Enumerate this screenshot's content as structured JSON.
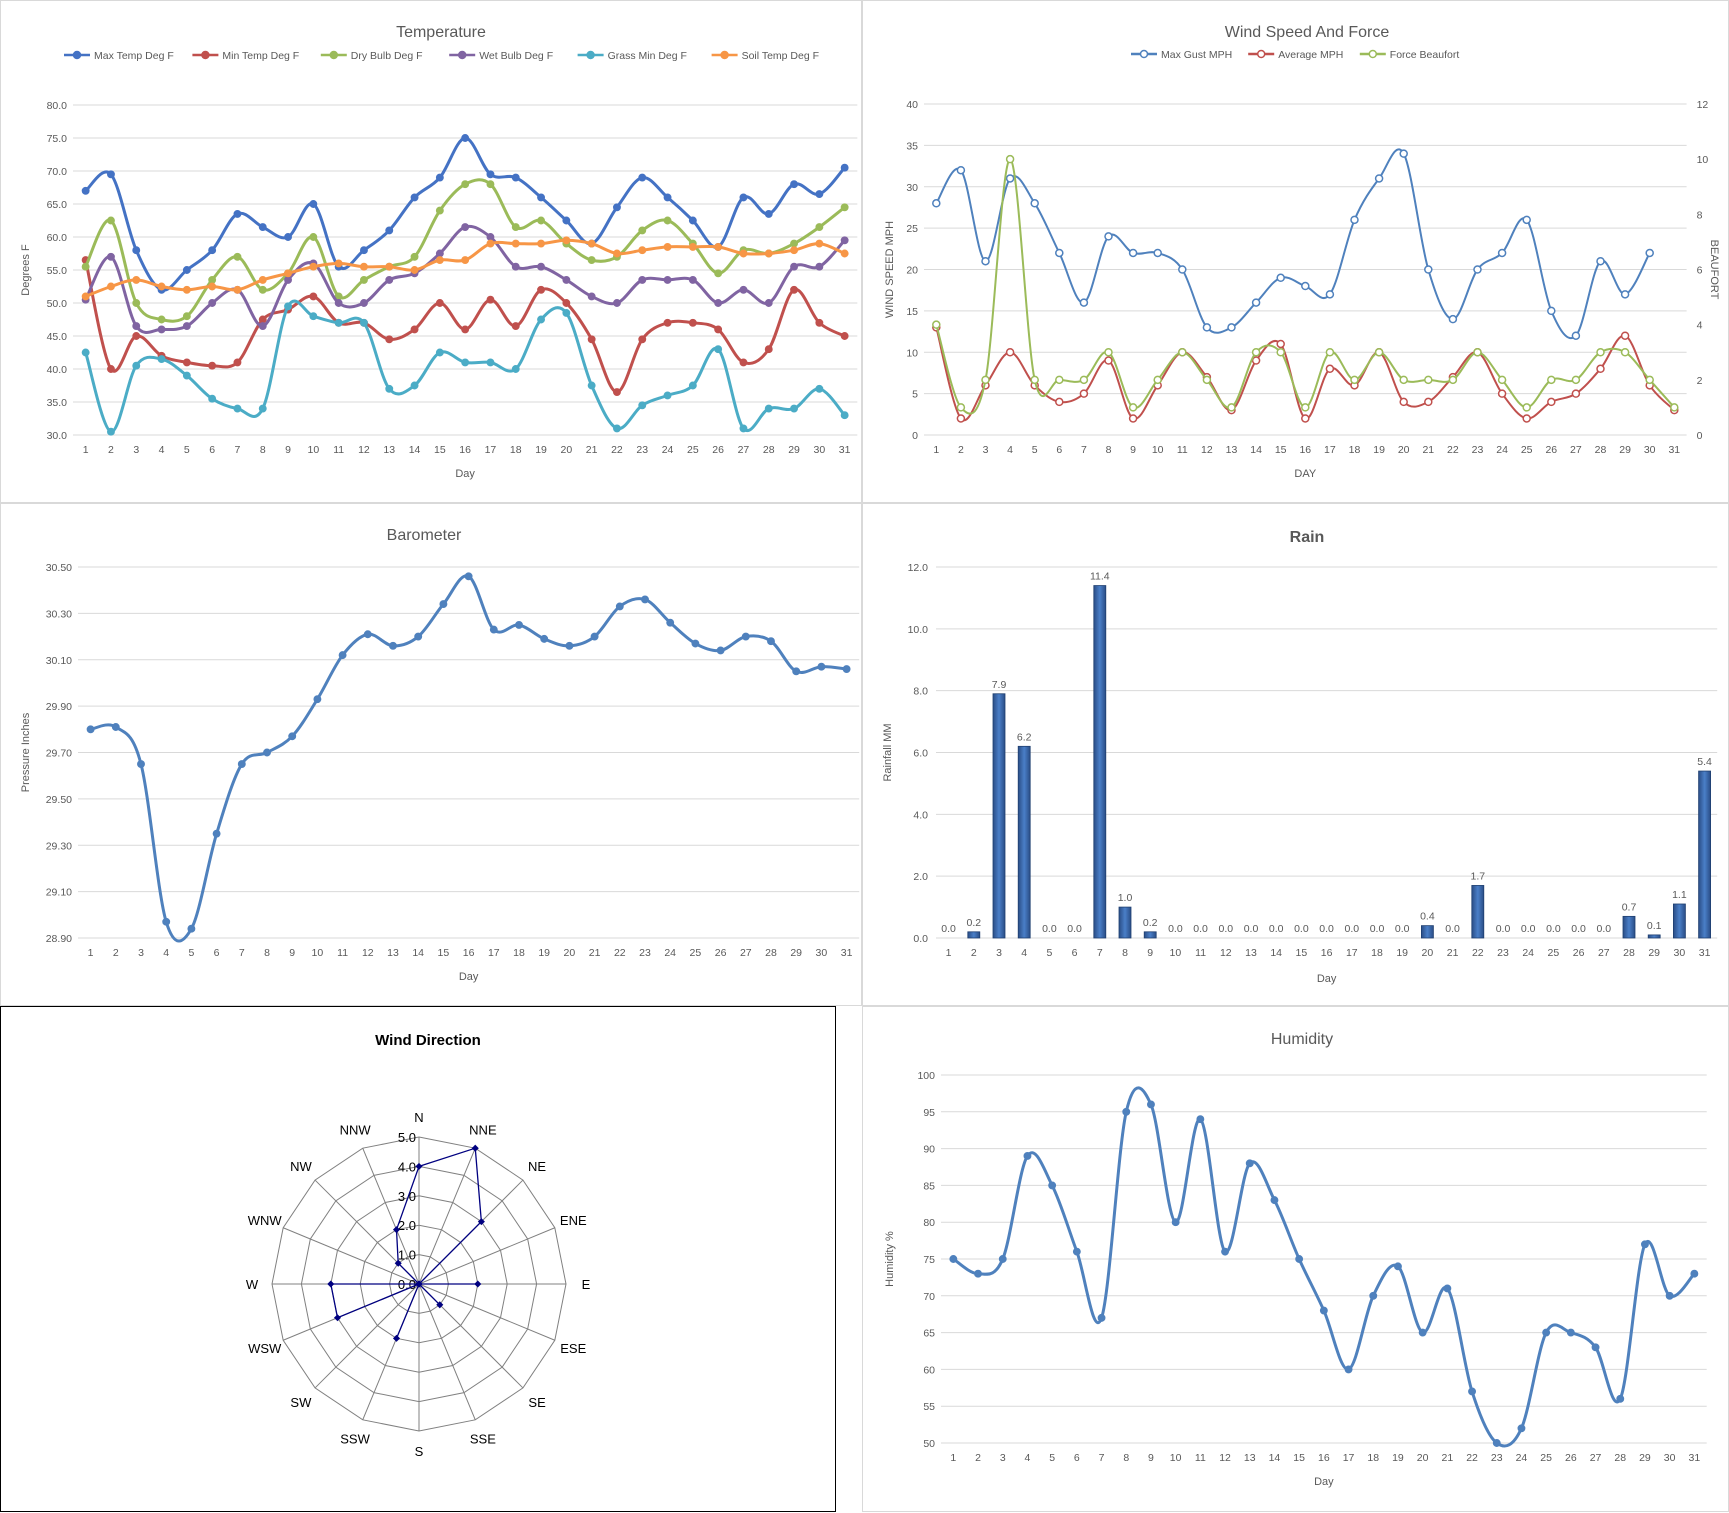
{
  "chart_data": [
    {
      "id": "temperature",
      "type": "line",
      "title": "Temperature",
      "xlabel": "Day",
      "ylabel": "Degrees F",
      "ylim": [
        30,
        80
      ],
      "yticks": [
        "30.0",
        "35.0",
        "40.0",
        "45.0",
        "50.0",
        "55.0",
        "60.0",
        "65.0",
        "70.0",
        "75.0",
        "80.0"
      ],
      "x": [
        1,
        2,
        3,
        4,
        5,
        6,
        7,
        8,
        9,
        10,
        11,
        12,
        13,
        14,
        15,
        16,
        17,
        18,
        19,
        20,
        21,
        22,
        23,
        24,
        25,
        26,
        27,
        28,
        29,
        30,
        31
      ],
      "legend": "top",
      "grid": true,
      "series": [
        {
          "name": "Max Temp Deg F",
          "color": "#4472c4",
          "values": [
            67,
            69.5,
            58,
            52,
            55,
            58,
            63.5,
            61.5,
            60,
            65,
            55.5,
            58,
            61,
            66,
            69,
            75,
            69.5,
            69,
            66,
            62.5,
            59,
            64.5,
            69,
            66,
            62.5,
            58.5,
            66,
            63.5,
            68,
            66.5,
            70.5
          ]
        },
        {
          "name": "Min Temp Deg F",
          "color": "#c0504d",
          "values": [
            56.5,
            40,
            45,
            42,
            41,
            40.5,
            41,
            47.5,
            49,
            51,
            47,
            47,
            44.5,
            46,
            50,
            46,
            50.5,
            46.5,
            52,
            50,
            44.5,
            36.5,
            44.5,
            47,
            47,
            46,
            41,
            43,
            52,
            47,
            45
          ]
        },
        {
          "name": "Dry Bulb Deg F",
          "color": "#9bbb59",
          "values": [
            55.5,
            62.5,
            50,
            47.5,
            48,
            53.5,
            57,
            52,
            54.5,
            60,
            51,
            53.5,
            55.5,
            57,
            64,
            68,
            68,
            61.5,
            62.5,
            59,
            56.5,
            57,
            61,
            62.5,
            59,
            54.5,
            58,
            57.5,
            59,
            61.5,
            64.5
          ]
        },
        {
          "name": "Wet Bulb Deg F",
          "color": "#8064a2",
          "values": [
            50.5,
            57,
            46.5,
            46,
            46.5,
            50,
            52,
            46.5,
            53.5,
            56,
            50,
            50,
            53.5,
            54.5,
            57.5,
            61.5,
            60,
            55.5,
            55.5,
            53.5,
            51,
            50,
            53.5,
            53.5,
            53.5,
            50,
            52,
            50,
            55.5,
            55.5,
            59.5
          ]
        },
        {
          "name": "Grass Min Deg F",
          "color": "#4bacc6",
          "values": [
            42.5,
            30.5,
            40.5,
            41.5,
            39,
            35.5,
            34,
            34,
            49.5,
            48,
            47,
            47,
            37,
            37.5,
            42.5,
            41,
            41,
            40,
            47.5,
            48.5,
            37.5,
            31,
            34.5,
            36,
            37.5,
            43,
            31,
            34,
            34,
            37,
            33
          ]
        },
        {
          "name": "Soil Temp Deg F",
          "color": "#f79646",
          "values": [
            51,
            52.5,
            53.5,
            52.5,
            52,
            52.5,
            52,
            53.5,
            54.5,
            55.5,
            56,
            55.5,
            55.5,
            55,
            56.5,
            56.5,
            59,
            59,
            59,
            59.5,
            59,
            57.5,
            58,
            58.5,
            58.5,
            58.5,
            57.5,
            57.5,
            58,
            59,
            57.5
          ]
        }
      ]
    },
    {
      "id": "wind",
      "type": "line",
      "title": "Wind Speed And Force",
      "xlabel": "DAY",
      "ylabel": "WIND SPEED MPH",
      "y2label": "BEAUFORT",
      "ylim": [
        0,
        40
      ],
      "y2lim": [
        0,
        12
      ],
      "yticks": [
        "0",
        "5",
        "10",
        "15",
        "20",
        "25",
        "30",
        "35",
        "40"
      ],
      "y2ticks": [
        "0",
        "2",
        "4",
        "6",
        "8",
        "10",
        "12"
      ],
      "x": [
        1,
        2,
        3,
        4,
        5,
        6,
        7,
        8,
        9,
        10,
        11,
        12,
        13,
        14,
        15,
        16,
        17,
        18,
        19,
        20,
        21,
        22,
        23,
        24,
        25,
        26,
        27,
        28,
        29,
        30,
        31
      ],
      "legend": "top",
      "grid": true,
      "series": [
        {
          "name": "Max Gust MPH",
          "color": "#4f81bd",
          "axis": "left",
          "values": [
            28,
            32,
            21,
            31,
            28,
            22,
            16,
            24,
            22,
            22,
            20,
            13,
            13,
            16,
            19,
            18,
            17,
            26,
            31,
            34,
            20,
            14,
            20,
            22,
            26,
            15,
            12,
            21,
            17,
            22,
            null
          ]
        },
        {
          "name": "Average MPH",
          "color": "#c0504d",
          "axis": "left",
          "values": [
            13,
            2,
            6,
            10,
            6,
            4,
            5,
            9,
            2,
            6,
            10,
            7,
            3,
            9,
            11,
            2,
            8,
            6,
            10,
            4,
            4,
            7,
            10,
            5,
            2,
            4,
            5,
            8,
            12,
            6,
            3
          ]
        },
        {
          "name": "Force Beaufort",
          "color": "#9bbb59",
          "axis": "right",
          "values": [
            4,
            1,
            2,
            10,
            2,
            2,
            2,
            3,
            1,
            2,
            3,
            2,
            1,
            3,
            3,
            1,
            3,
            2,
            3,
            2,
            2,
            2,
            3,
            2,
            1,
            2,
            2,
            3,
            3,
            2,
            1
          ]
        }
      ]
    },
    {
      "id": "barometer",
      "type": "line",
      "title": "Barometer",
      "xlabel": "Day",
      "ylabel": "Pressure Inches",
      "ylim": [
        28.9,
        30.5
      ],
      "yticks": [
        "28.90",
        "29.10",
        "29.30",
        "29.50",
        "29.70",
        "29.90",
        "30.10",
        "30.30",
        "30.50"
      ],
      "x": [
        1,
        2,
        3,
        4,
        5,
        6,
        7,
        8,
        9,
        10,
        11,
        12,
        13,
        14,
        15,
        16,
        17,
        18,
        19,
        20,
        21,
        22,
        23,
        24,
        25,
        26,
        27,
        28,
        29,
        30,
        31
      ],
      "grid": true,
      "series": [
        {
          "color": "#4f81bd",
          "values": [
            29.8,
            29.81,
            29.65,
            28.97,
            28.94,
            29.35,
            29.65,
            29.7,
            29.77,
            29.93,
            30.12,
            30.21,
            30.16,
            30.2,
            30.34,
            30.46,
            30.23,
            30.25,
            30.19,
            30.16,
            30.2,
            30.33,
            30.36,
            30.26,
            30.17,
            30.14,
            30.2,
            30.18,
            30.05,
            30.07,
            30.06
          ]
        }
      ]
    },
    {
      "id": "rain",
      "type": "bar",
      "title": "Rain",
      "xlabel": "Day",
      "ylabel": "Rainfall MM",
      "ylim": [
        0,
        12
      ],
      "yticks": [
        "0.0",
        "2.0",
        "4.0",
        "6.0",
        "8.0",
        "10.0",
        "12.0"
      ],
      "categories": [
        "1",
        "2",
        "3",
        "4",
        "5",
        "6",
        "7",
        "8",
        "9",
        "10",
        "11",
        "12",
        "13",
        "14",
        "15",
        "16",
        "17",
        "18",
        "19",
        "20",
        "21",
        "22",
        "23",
        "24",
        "25",
        "26",
        "27",
        "28",
        "29",
        "30",
        "31"
      ],
      "grid": true,
      "series": [
        {
          "color": "#2e5e9e",
          "values": [
            0.0,
            0.2,
            7.9,
            6.2,
            0.0,
            0.0,
            11.4,
            1.0,
            0.2,
            0.0,
            0.0,
            0.0,
            0.0,
            0.0,
            0.0,
            0.0,
            0.0,
            0.0,
            0.0,
            0.4,
            0.0,
            1.7,
            0.0,
            0.0,
            0.0,
            0.0,
            0.0,
            0.7,
            0.1,
            1.1,
            5.4
          ],
          "labels": [
            "0.0",
            "0.2",
            "7.9",
            "6.2",
            "0.0",
            "0.0",
            "11.4",
            "1.0",
            "0.2",
            "0.0",
            "0.0",
            "0.0",
            "0.0",
            "0.0",
            "0.0",
            "0.0",
            "0.0",
            "0.0",
            "0.0",
            "0.4",
            "0.0",
            "1.7",
            "0.0",
            "0.0",
            "0.0",
            "0.0",
            "0.0",
            "0.7",
            "0.1",
            "1.1",
            "5.4"
          ]
        }
      ]
    },
    {
      "id": "wind-direction",
      "type": "radar",
      "title": "Wind Direction",
      "categories": [
        "N",
        "NNE",
        "NE",
        "ENE",
        "E",
        "ESE",
        "SE",
        "SSE",
        "S",
        "SSW",
        "SW",
        "WSW",
        "W",
        "WNW",
        "NW",
        "NNW"
      ],
      "rlim": [
        0,
        5
      ],
      "rticks": [
        "0.0",
        "1.0",
        "2.0",
        "3.0",
        "4.0",
        "5.0"
      ],
      "series": [
        {
          "color": "#000080",
          "values": [
            4,
            5,
            3,
            0,
            2,
            0,
            1,
            0,
            0,
            2,
            0,
            3,
            3,
            0,
            1,
            2
          ]
        }
      ]
    },
    {
      "id": "humidity",
      "type": "line",
      "title": "Humidity",
      "xlabel": "Day",
      "ylabel": "Humidity %",
      "ylim": [
        50,
        100
      ],
      "yticks": [
        "50",
        "55",
        "60",
        "65",
        "70",
        "75",
        "80",
        "85",
        "90",
        "95",
        "100"
      ],
      "x": [
        1,
        2,
        3,
        4,
        5,
        6,
        7,
        8,
        9,
        10,
        11,
        12,
        13,
        14,
        15,
        16,
        17,
        18,
        19,
        20,
        21,
        22,
        23,
        24,
        25,
        26,
        27,
        28,
        29,
        30,
        31
      ],
      "grid": true,
      "series": [
        {
          "color": "#4f81bd",
          "values": [
            75,
            73,
            75,
            89,
            85,
            76,
            67,
            95,
            96,
            80,
            94,
            76,
            88,
            83,
            75,
            68,
            60,
            70,
            74,
            65,
            71,
            57,
            50,
            52,
            65,
            65,
            63,
            56,
            77,
            70,
            73
          ]
        }
      ]
    }
  ]
}
